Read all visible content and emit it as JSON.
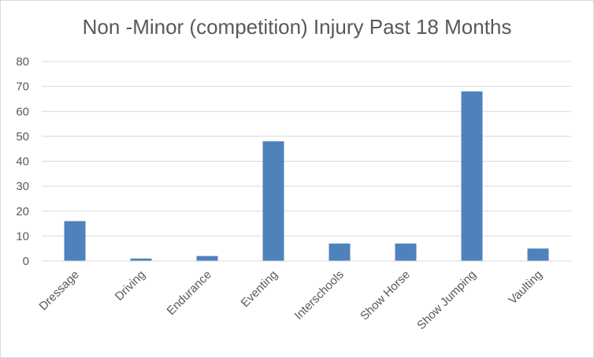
{
  "chart_data": {
    "type": "bar",
    "title": "Non -Minor (competition) Injury Past 18 Months",
    "categories": [
      "Dressage",
      "Driving",
      "Endurance",
      "Eventing",
      "Interschools",
      "Show Horse",
      "Show Jumping",
      "Vaulting"
    ],
    "values": [
      16,
      1,
      2,
      48,
      7,
      7,
      68,
      5
    ],
    "xlabel": "",
    "ylabel": "",
    "ylim": [
      0,
      80
    ],
    "yticks": [
      "0",
      "10",
      "20",
      "30",
      "40",
      "50",
      "60",
      "70",
      "80"
    ],
    "grid": true,
    "legend": "none",
    "bar_color": "#4f81bd",
    "grid_color": "#d9d9d9"
  }
}
